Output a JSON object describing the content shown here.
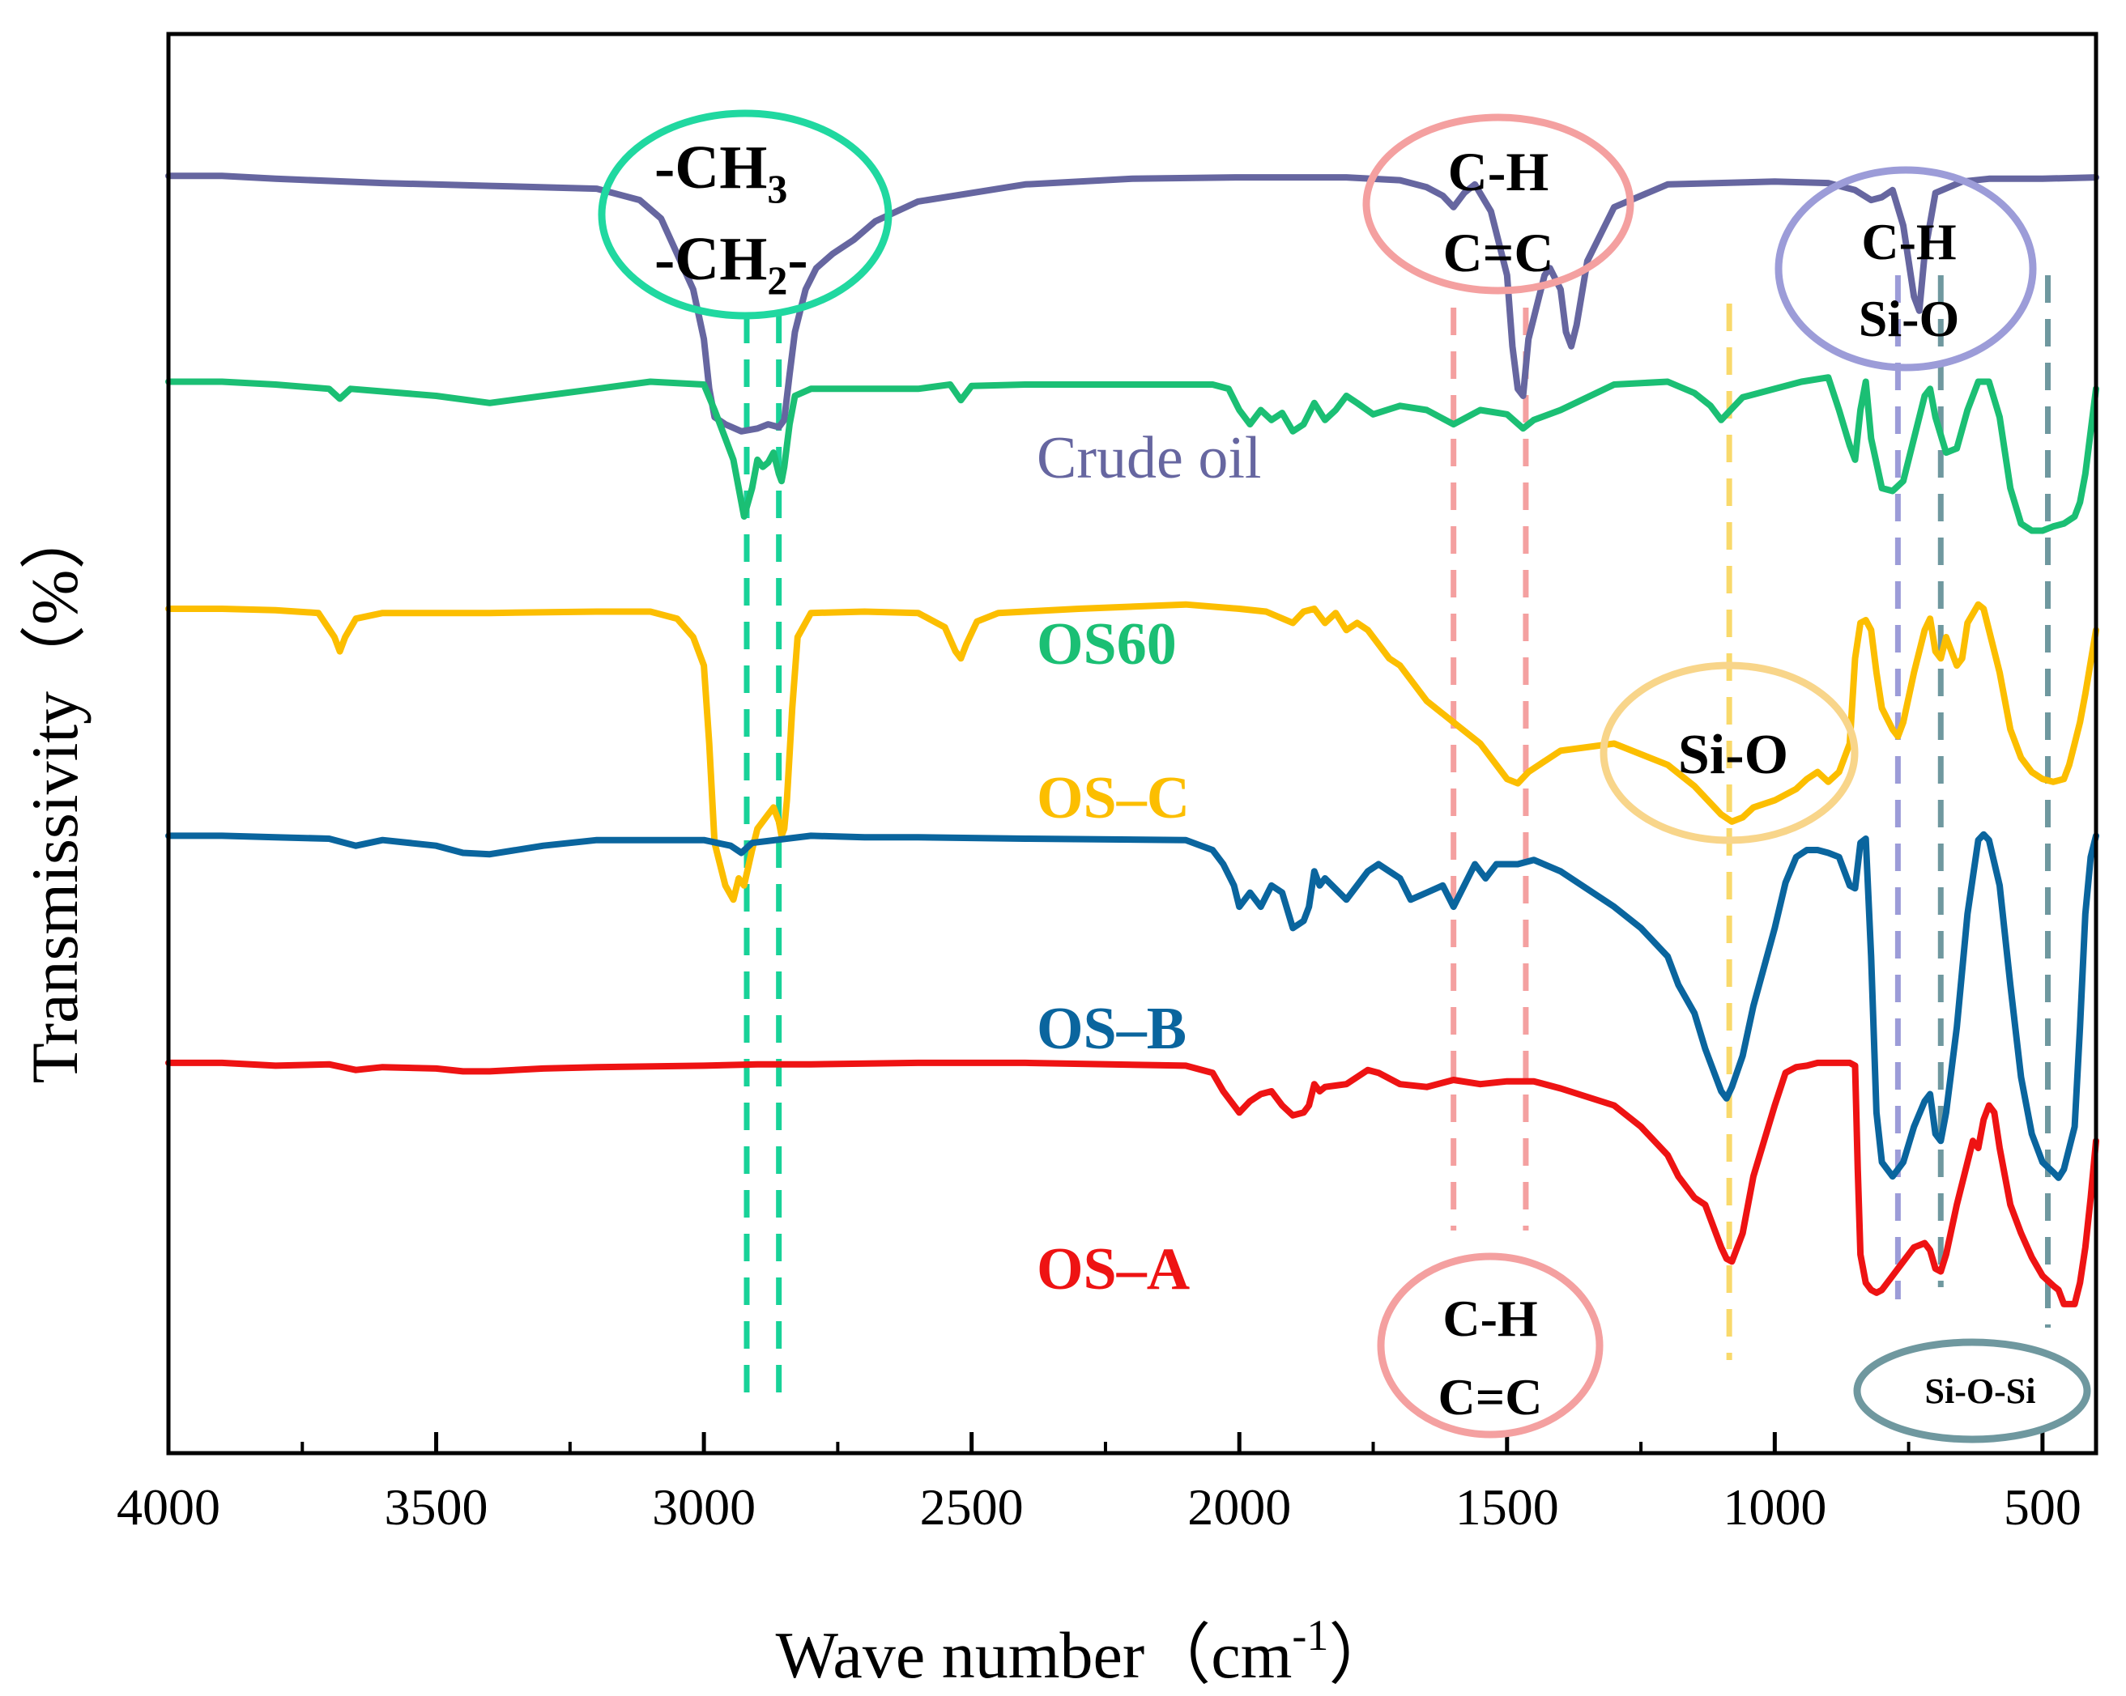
{
  "chart_data": {
    "type": "line",
    "title": "",
    "xlabel": "Wave number（cm",
    "xlabel_sup": "-1",
    "xlabel_end": "）",
    "ylabel": "Transmissivity（%）",
    "xlim": [
      4000,
      400
    ],
    "x_ticks": [
      4000,
      3500,
      3000,
      2500,
      2000,
      1500,
      1000,
      500
    ],
    "x_tick_labels": [
      "4000",
      "3500",
      "3000",
      "2500",
      "2000",
      "1500",
      "1000",
      "500"
    ],
    "x_minor_ticks": [
      3750,
      3250,
      2750,
      2250,
      1750,
      1250,
      750
    ],
    "y_ticks_shown": false,
    "ylim": [
      0,
      100
    ],
    "grid": false,
    "series": [
      {
        "name": "Crude oil",
        "label": "Crude oil",
        "color": "#6666a0",
        "bold": false,
        "x": [
          4000,
          3900,
          3800,
          3600,
          3400,
          3200,
          3120,
          3080,
          3050,
          3020,
          3000,
          2990,
          2980,
          2960,
          2930,
          2900,
          2880,
          2860,
          2850,
          2840,
          2830,
          2810,
          2790,
          2760,
          2720,
          2680,
          2600,
          2400,
          2200,
          2000,
          1800,
          1700,
          1650,
          1620,
          1600,
          1580,
          1560,
          1530,
          1500,
          1490,
          1480,
          1470,
          1460,
          1450,
          1440,
          1430,
          1420,
          1400,
          1390,
          1380,
          1370,
          1350,
          1300,
          1200,
          1000,
          900,
          850,
          820,
          800,
          780,
          760,
          750,
          740,
          730,
          720,
          700,
          650,
          600,
          500,
          400
        ],
        "y": [
          90,
          90,
          89.8,
          89.5,
          89.3,
          89.1,
          88.3,
          87,
          84.5,
          82,
          78.5,
          75,
          73,
          72.5,
          72,
          72.2,
          72.5,
          72.3,
          72.8,
          76,
          79,
          82,
          83.5,
          84.5,
          85.5,
          86.8,
          88.2,
          89.4,
          89.8,
          89.9,
          89.9,
          89.7,
          89.2,
          88.6,
          87.8,
          88.8,
          89.4,
          87.5,
          83,
          78,
          75,
          74.5,
          78.5,
          80,
          81.5,
          83,
          83.5,
          82,
          79,
          78,
          79.5,
          84,
          87.8,
          89.4,
          89.6,
          89.5,
          89,
          88.3,
          88.5,
          89,
          86.5,
          84,
          81.5,
          80.5,
          84.5,
          88.8,
          89.6,
          89.8,
          89.8,
          89.9
        ]
      },
      {
        "name": "OS60",
        "label": "OS60",
        "color": "#1bbf74",
        "bold": true,
        "x": [
          4000,
          3900,
          3800,
          3700,
          3680,
          3660,
          3500,
          3400,
          3300,
          3200,
          3100,
          3000,
          2980,
          2960,
          2945,
          2935,
          2925,
          2910,
          2900,
          2890,
          2880,
          2870,
          2860,
          2855,
          2850,
          2840,
          2830,
          2800,
          2700,
          2600,
          2540,
          2520,
          2500,
          2400,
          2200,
          2050,
          2020,
          2000,
          1980,
          1960,
          1940,
          1920,
          1900,
          1880,
          1860,
          1840,
          1820,
          1800,
          1780,
          1750,
          1700,
          1650,
          1600,
          1550,
          1500,
          1470,
          1450,
          1400,
          1300,
          1200,
          1150,
          1120,
          1100,
          1080,
          1060,
          1000,
          950,
          900,
          880,
          860,
          850,
          840,
          830,
          820,
          800,
          780,
          760,
          740,
          720,
          710,
          700,
          680,
          660,
          640,
          620,
          600,
          580,
          560,
          540,
          520,
          500,
          480,
          460,
          440,
          430,
          420,
          400
        ],
        "y": [
          75.5,
          75.5,
          75.3,
          75,
          74.3,
          75,
          74.5,
          74,
          74.5,
          75,
          75.5,
          75.3,
          73.5,
          71.5,
          70,
          68,
          66,
          68,
          70,
          69.5,
          69.8,
          70.5,
          69,
          68.5,
          69.5,
          72.5,
          74.5,
          75,
          75,
          75,
          75.3,
          74.2,
          75.2,
          75.3,
          75.3,
          75.3,
          75,
          73.5,
          72.5,
          73.5,
          72.8,
          73.3,
          72,
          72.5,
          74,
          72.8,
          73.5,
          74.5,
          74,
          73.2,
          73.8,
          73.5,
          72.5,
          73.5,
          73.2,
          72.2,
          72.8,
          73.5,
          75.3,
          75.5,
          74.7,
          73.8,
          72.8,
          73.6,
          74.4,
          75,
          75.5,
          75.8,
          73.5,
          71,
          70,
          73.5,
          75.5,
          71.5,
          68,
          67.8,
          68.5,
          71.5,
          74.5,
          75,
          73,
          70.5,
          70.8,
          73.5,
          75.5,
          75.5,
          73,
          68,
          65.5,
          65,
          65,
          65.3,
          65.5,
          66,
          67,
          69,
          75
        ]
      },
      {
        "name": "OS-C",
        "label": "OS–C",
        "color": "#fcbe00",
        "bold": true,
        "x": [
          4000,
          3900,
          3800,
          3720,
          3690,
          3680,
          3670,
          3650,
          3600,
          3400,
          3200,
          3100,
          3050,
          3020,
          3000,
          2990,
          2980,
          2960,
          2945,
          2935,
          2925,
          2910,
          2900,
          2880,
          2870,
          2860,
          2855,
          2850,
          2845,
          2835,
          2825,
          2800,
          2700,
          2600,
          2550,
          2530,
          2520,
          2510,
          2490,
          2450,
          2300,
          2100,
          2000,
          1950,
          1900,
          1880,
          1860,
          1840,
          1820,
          1800,
          1780,
          1760,
          1740,
          1720,
          1700,
          1650,
          1600,
          1550,
          1500,
          1480,
          1460,
          1440,
          1400,
          1300,
          1200,
          1150,
          1120,
          1100,
          1080,
          1060,
          1040,
          1000,
          960,
          940,
          920,
          900,
          880,
          860,
          850,
          840,
          830,
          820,
          810,
          800,
          780,
          770,
          760,
          740,
          720,
          710,
          700,
          690,
          680,
          660,
          650,
          640,
          620,
          610,
          600,
          580,
          560,
          540,
          520,
          500,
          480,
          460,
          450,
          440,
          430,
          420,
          400
        ],
        "y": [
          59.5,
          59.5,
          59.4,
          59.2,
          57.5,
          56.5,
          57.5,
          58.8,
          59.2,
          59.2,
          59.3,
          59.3,
          58.8,
          57.5,
          55.5,
          50,
          43,
          40,
          39,
          40.5,
          40,
          42.5,
          44,
          45,
          45.5,
          44.5,
          43.5,
          44,
          46,
          52.5,
          57.5,
          59.2,
          59.3,
          59.2,
          58.2,
          56.5,
          56,
          57,
          58.6,
          59.2,
          59.5,
          59.8,
          59.5,
          59.3,
          58.5,
          59.3,
          59.5,
          58.5,
          59.2,
          58,
          58.5,
          58,
          57,
          56,
          55.5,
          53,
          51.5,
          50,
          47.5,
          47.2,
          48,
          48.5,
          49.5,
          50,
          48.5,
          47,
          45.8,
          45,
          44.5,
          44.8,
          45.5,
          46,
          46.8,
          47.5,
          48,
          47.3,
          48,
          50,
          56,
          58.5,
          58.7,
          58,
          55,
          52.5,
          51,
          50.5,
          51.5,
          55,
          58,
          58.8,
          56.5,
          56,
          57.5,
          55.5,
          56,
          58.5,
          59.8,
          59.5,
          58,
          55,
          51,
          49,
          48,
          47.5,
          47.3,
          47.5,
          48.5,
          50,
          51.5,
          53.5,
          58
        ]
      },
      {
        "name": "OS-B",
        "label": "OS–B",
        "color": "#0a659e",
        "bold": true,
        "x": [
          4000,
          3900,
          3800,
          3700,
          3650,
          3600,
          3500,
          3450,
          3400,
          3300,
          3200,
          3000,
          2950,
          2930,
          2910,
          2800,
          2700,
          2600,
          2400,
          2100,
          2050,
          2030,
          2010,
          2000,
          1980,
          1960,
          1940,
          1920,
          1900,
          1880,
          1870,
          1860,
          1850,
          1840,
          1800,
          1760,
          1740,
          1700,
          1680,
          1650,
          1620,
          1600,
          1580,
          1560,
          1540,
          1520,
          1500,
          1480,
          1450,
          1400,
          1300,
          1250,
          1200,
          1180,
          1150,
          1130,
          1110,
          1100,
          1090,
          1080,
          1060,
          1040,
          1000,
          980,
          960,
          940,
          920,
          900,
          880,
          860,
          850,
          840,
          830,
          820,
          810,
          800,
          780,
          760,
          740,
          720,
          710,
          700,
          690,
          680,
          660,
          640,
          620,
          610,
          600,
          580,
          560,
          540,
          520,
          500,
          480,
          470,
          460,
          440,
          430,
          420,
          410,
          400
        ],
        "y": [
          43.5,
          43.5,
          43.4,
          43.3,
          42.8,
          43.2,
          42.8,
          42.3,
          42.2,
          42.8,
          43.2,
          43.2,
          42.8,
          42.3,
          43,
          43.5,
          43.4,
          43.4,
          43.3,
          43.2,
          42.5,
          41.5,
          40,
          38.5,
          39.5,
          38.5,
          40,
          39.5,
          37,
          37.5,
          38.5,
          41,
          40,
          40.5,
          39,
          41,
          41.5,
          40.5,
          39,
          39.5,
          40,
          38.5,
          40,
          41.5,
          40.5,
          41.5,
          41.5,
          41.5,
          41.8,
          41,
          38.5,
          37,
          35,
          33,
          31,
          28.5,
          26.5,
          25.5,
          25,
          25.8,
          28,
          31.5,
          37,
          40.2,
          42,
          42.5,
          42.5,
          42.3,
          42,
          40,
          39.8,
          43,
          43.3,
          35,
          24,
          20.5,
          19.5,
          20.5,
          23,
          24.8,
          25.3,
          22.5,
          22,
          24,
          30,
          38,
          43.2,
          43.6,
          43.2,
          40,
          33,
          26.5,
          22.5,
          20.5,
          19.8,
          19.4,
          20,
          23,
          30,
          38,
          42,
          43.5
        ]
      },
      {
        "name": "OS-A",
        "label": "OS–A",
        "color": "#ee1313",
        "bold": true,
        "x": [
          4000,
          3900,
          3800,
          3700,
          3650,
          3600,
          3500,
          3450,
          3400,
          3300,
          3200,
          3000,
          2900,
          2800,
          2600,
          2400,
          2100,
          2050,
          2030,
          2010,
          2000,
          1980,
          1960,
          1940,
          1920,
          1900,
          1880,
          1870,
          1860,
          1850,
          1840,
          1800,
          1760,
          1740,
          1700,
          1650,
          1600,
          1550,
          1500,
          1450,
          1400,
          1300,
          1250,
          1200,
          1180,
          1150,
          1130,
          1110,
          1100,
          1090,
          1080,
          1060,
          1040,
          1000,
          980,
          960,
          940,
          920,
          900,
          880,
          860,
          850,
          845,
          840,
          830,
          820,
          810,
          800,
          780,
          760,
          740,
          720,
          710,
          700,
          690,
          680,
          660,
          640,
          630,
          620,
          610,
          600,
          590,
          580,
          560,
          540,
          520,
          500,
          480,
          470,
          460,
          440,
          430,
          420,
          410,
          400
        ],
        "y": [
          27.5,
          27.5,
          27.3,
          27.4,
          27,
          27.2,
          27.1,
          26.9,
          26.9,
          27.1,
          27.2,
          27.3,
          27.4,
          27.4,
          27.5,
          27.5,
          27.3,
          26.8,
          25.5,
          24.5,
          24,
          24.8,
          25.3,
          25.5,
          24.5,
          23.8,
          24,
          24.5,
          26,
          25.5,
          25.8,
          26,
          27,
          26.8,
          26,
          25.8,
          26.3,
          26,
          26.2,
          26.2,
          25.7,
          24.5,
          23,
          21,
          19.5,
          18,
          17.5,
          15.5,
          14.5,
          13.7,
          13.5,
          15.5,
          19.5,
          24.5,
          26.8,
          27.2,
          27.3,
          27.5,
          27.5,
          27.5,
          27.5,
          27.3,
          20,
          14,
          12,
          11.5,
          11.3,
          11.5,
          12.5,
          13.5,
          14.5,
          14.8,
          14.3,
          13,
          12.8,
          14,
          17.5,
          20.5,
          22,
          21.5,
          23.5,
          24.5,
          24,
          21.5,
          17.5,
          15.5,
          13.8,
          12.5,
          11.8,
          11.5,
          10.5,
          10.5,
          12,
          14.5,
          18,
          22
        ]
      }
    ],
    "dashed_markers": [
      {
        "x": 2920,
        "color": "#18d298"
      },
      {
        "x": 2860,
        "color": "#18d298"
      },
      {
        "x": 1600,
        "color": "#f4a0a0"
      },
      {
        "x": 1465,
        "color": "#f4a0a0"
      },
      {
        "x": 1085,
        "color": "#f9d96b"
      },
      {
        "x": 770,
        "color": "#9c9cd8"
      },
      {
        "x": 690,
        "color": "#6f989f"
      },
      {
        "x": 490,
        "color": "#6f989f"
      }
    ],
    "annotations": [
      {
        "lines": [
          "-CH",
          "-CH"
        ],
        "subs": [
          "3",
          "2"
        ],
        "tails": [
          "",
          "-"
        ],
        "color": "#20d8a0"
      },
      {
        "lines": [
          "C-H",
          "C=C"
        ],
        "color": "#f4a0a0"
      },
      {
        "lines": [
          "C-H",
          "Si-O"
        ],
        "color": "#9c9cd8"
      },
      {
        "lines": [
          "Si-O"
        ],
        "color": "#f8d58a"
      },
      {
        "lines": [
          "C-H",
          "C=C"
        ],
        "color": "#f4a0a0"
      },
      {
        "lines": [
          "Si-O-Si"
        ],
        "color": "#6f989f"
      }
    ]
  }
}
